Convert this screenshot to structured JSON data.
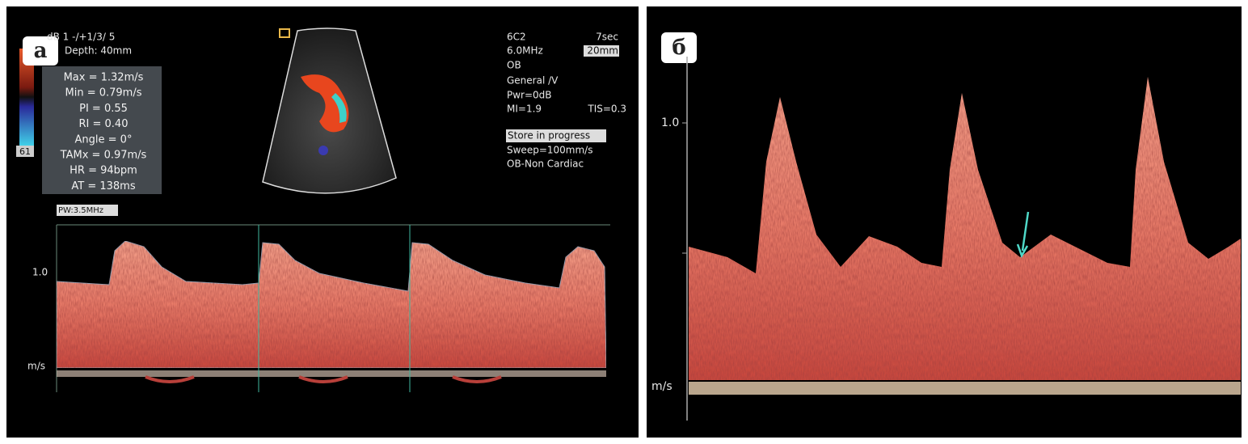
{
  "panel_a": {
    "label": "а",
    "header": [
      "dB  1 -/+1/3/ 5",
      "Depth: 40mm"
    ],
    "measurements": [
      "Max = 1.32m/s",
      "Min = 0.79m/s",
      "PI = 0.55",
      "RI = 0.40",
      "Angle = 0°",
      "TAMx = 0.97m/s",
      "HR = 94bpm",
      "AT = 138ms"
    ],
    "color_scale": "61",
    "probe_label": "PW:3.5MHz",
    "settings": [
      "6C2",
      "6.0MHz",
      "OB",
      "General /V",
      "Pwr=0dB",
      "MI=1.9"
    ],
    "settings_right": [
      "7sec",
      "20mm",
      "TIS=0.3"
    ],
    "status": "Store in progress",
    "sweep": "Sweep=100mm/s",
    "preset": "OB-Non Cardiac",
    "axis": {
      "tick": "1.0",
      "unit": "m/s"
    }
  },
  "panel_b": {
    "label": "б",
    "axis": {
      "tick": "1.0",
      "unit": "m/s"
    }
  }
}
